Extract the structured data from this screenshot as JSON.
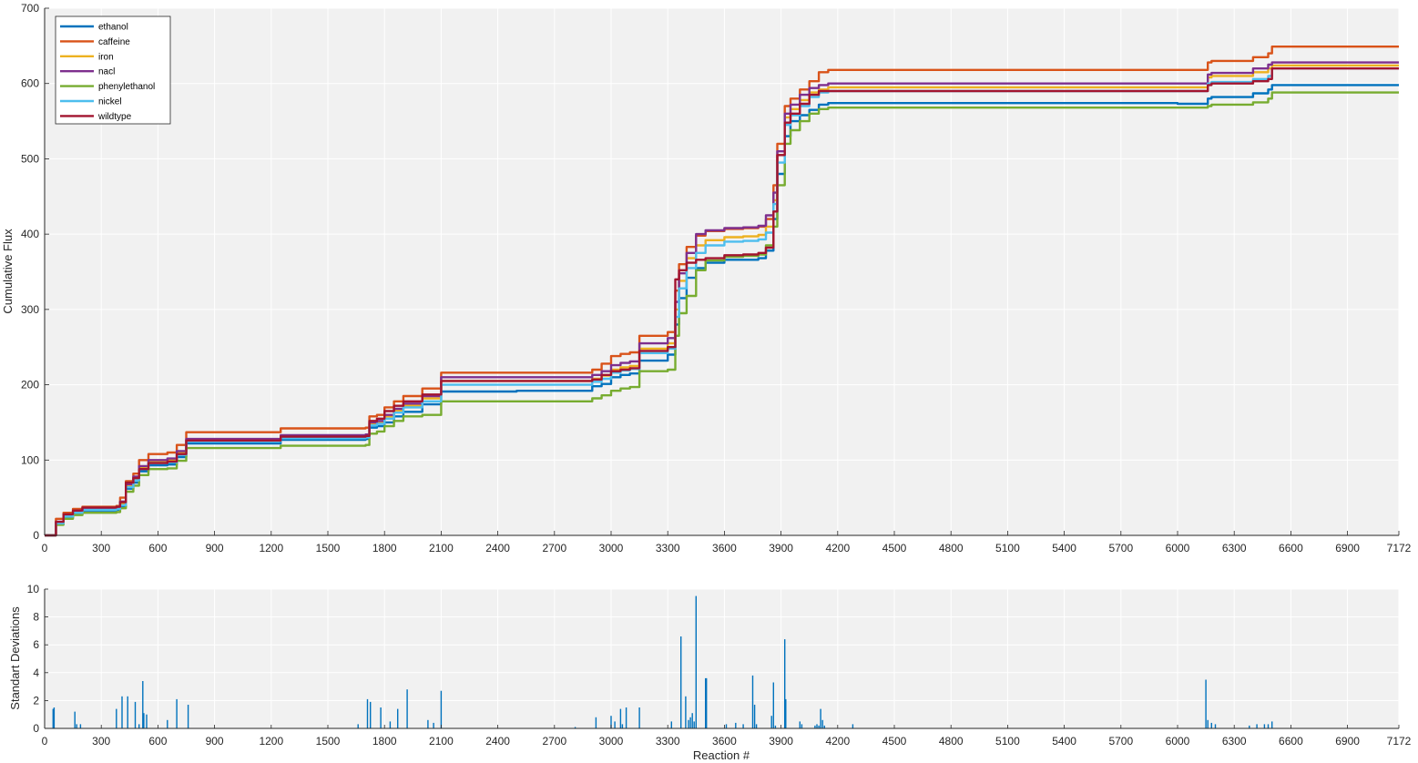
{
  "chart_data": [
    {
      "type": "line",
      "title": "",
      "xlabel": "",
      "ylabel": "Cumulative Flux",
      "xlim": [
        0,
        7172
      ],
      "ylim": [
        0,
        700
      ],
      "xticks": [
        0,
        300,
        600,
        900,
        1200,
        1500,
        1800,
        2100,
        2400,
        2700,
        3000,
        3300,
        3600,
        3900,
        4200,
        4500,
        4800,
        5100,
        5400,
        5700,
        6000,
        6300,
        6600,
        6900,
        7172
      ],
      "yticks": [
        0,
        100,
        200,
        300,
        400,
        500,
        600,
        700
      ],
      "grid": true,
      "legend_position": "top-left",
      "series": [
        {
          "name": "ethanol",
          "color": "#0072BD",
          "x": [
            0,
            40,
            60,
            100,
            150,
            200,
            380,
            400,
            430,
            470,
            500,
            550,
            650,
            700,
            750,
            1000,
            1250,
            1500,
            1700,
            1720,
            1760,
            1800,
            1850,
            1900,
            2000,
            2100,
            2500,
            2800,
            2900,
            2950,
            3000,
            3050,
            3100,
            3150,
            3300,
            3340,
            3360,
            3400,
            3450,
            3500,
            3600,
            3700,
            3780,
            3820,
            3860,
            3880,
            3920,
            3950,
            4000,
            4050,
            4100,
            4150,
            4500,
            5000,
            5500,
            6000,
            6160,
            6180,
            6400,
            6480,
            6500,
            7172
          ],
          "y": [
            0,
            0,
            15,
            24,
            29,
            33,
            34,
            38,
            62,
            70,
            85,
            93,
            94,
            104,
            122,
            122,
            127,
            127,
            128,
            143,
            145,
            150,
            158,
            164,
            174,
            191,
            192,
            192,
            198,
            201,
            210,
            213,
            215,
            232,
            240,
            280,
            315,
            342,
            355,
            362,
            366,
            366,
            368,
            378,
            420,
            480,
            530,
            550,
            558,
            565,
            572,
            574,
            574,
            574,
            574,
            573,
            580,
            582,
            587,
            592,
            598,
            598
          ]
        },
        {
          "name": "caffeine",
          "color": "#D95319",
          "x": [
            0,
            40,
            60,
            100,
            150,
            200,
            380,
            400,
            430,
            470,
            500,
            550,
            650,
            700,
            750,
            1000,
            1250,
            1500,
            1700,
            1720,
            1760,
            1800,
            1850,
            1900,
            2000,
            2100,
            2500,
            2800,
            2900,
            2950,
            3000,
            3050,
            3100,
            3150,
            3300,
            3340,
            3360,
            3400,
            3450,
            3500,
            3600,
            3700,
            3780,
            3820,
            3860,
            3880,
            3920,
            3950,
            4000,
            4050,
            4100,
            4150,
            4500,
            5000,
            5500,
            6000,
            6160,
            6180,
            6400,
            6480,
            6500,
            7172
          ],
          "y": [
            0,
            0,
            22,
            30,
            35,
            38,
            39,
            50,
            72,
            82,
            100,
            108,
            110,
            120,
            137,
            137,
            142,
            142,
            143,
            158,
            160,
            170,
            178,
            185,
            195,
            216,
            216,
            216,
            220,
            228,
            238,
            241,
            243,
            265,
            270,
            325,
            360,
            383,
            398,
            404,
            407,
            408,
            410,
            420,
            465,
            520,
            570,
            580,
            592,
            603,
            615,
            618,
            618,
            618,
            618,
            618,
            628,
            630,
            635,
            640,
            649,
            649
          ]
        },
        {
          "name": "iron",
          "color": "#EDB120",
          "x": [
            0,
            40,
            60,
            100,
            150,
            200,
            380,
            400,
            430,
            470,
            500,
            550,
            650,
            700,
            750,
            1000,
            1250,
            1500,
            1700,
            1720,
            1760,
            1800,
            1850,
            1900,
            2000,
            2100,
            2500,
            2800,
            2900,
            2950,
            3000,
            3050,
            3100,
            3150,
            3300,
            3340,
            3360,
            3400,
            3450,
            3500,
            3600,
            3700,
            3780,
            3820,
            3860,
            3880,
            3920,
            3950,
            4000,
            4050,
            4100,
            4150,
            4500,
            5000,
            5500,
            6000,
            6160,
            6180,
            6400,
            6480,
            6500,
            7172
          ],
          "y": [
            0,
            0,
            17,
            26,
            31,
            35,
            36,
            42,
            66,
            75,
            90,
            98,
            100,
            110,
            127,
            127,
            132,
            132,
            133,
            148,
            150,
            158,
            166,
            172,
            182,
            205,
            205,
            205,
            208,
            212,
            220,
            223,
            225,
            248,
            255,
            300,
            338,
            368,
            385,
            392,
            396,
            397,
            399,
            410,
            445,
            505,
            555,
            566,
            578,
            588,
            592,
            595,
            595,
            595,
            595,
            595,
            608,
            610,
            615,
            620,
            624,
            624
          ]
        },
        {
          "name": "nacl",
          "color": "#7E2F8E",
          "x": [
            0,
            40,
            60,
            100,
            150,
            200,
            380,
            400,
            430,
            470,
            500,
            550,
            650,
            700,
            750,
            1000,
            1250,
            1500,
            1700,
            1720,
            1760,
            1800,
            1850,
            1900,
            2000,
            2100,
            2500,
            2800,
            2900,
            2950,
            3000,
            3050,
            3100,
            3150,
            3300,
            3340,
            3360,
            3400,
            3450,
            3500,
            3600,
            3700,
            3780,
            3820,
            3860,
            3880,
            3920,
            3950,
            4000,
            4050,
            4100,
            4150,
            4500,
            5000,
            5500,
            6000,
            6160,
            6180,
            6400,
            6480,
            6500,
            7172
          ],
          "y": [
            0,
            0,
            18,
            27,
            32,
            36,
            37,
            45,
            68,
            78,
            92,
            100,
            102,
            112,
            128,
            128,
            133,
            133,
            134,
            150,
            152,
            160,
            168,
            175,
            185,
            210,
            210,
            210,
            213,
            218,
            226,
            229,
            231,
            255,
            262,
            310,
            348,
            375,
            400,
            405,
            408,
            409,
            411,
            425,
            455,
            510,
            560,
            572,
            585,
            594,
            598,
            600,
            600,
            600,
            600,
            600,
            612,
            614,
            620,
            625,
            628,
            628
          ]
        },
        {
          "name": "phenylethanol",
          "color": "#77AC30",
          "x": [
            0,
            40,
            60,
            100,
            150,
            200,
            380,
            400,
            430,
            470,
            500,
            550,
            650,
            700,
            750,
            1000,
            1250,
            1500,
            1700,
            1720,
            1760,
            1800,
            1850,
            1900,
            2000,
            2100,
            2500,
            2800,
            2900,
            2950,
            3000,
            3050,
            3100,
            3150,
            3300,
            3340,
            3360,
            3400,
            3450,
            3500,
            3600,
            3700,
            3780,
            3820,
            3860,
            3880,
            3920,
            3950,
            4000,
            4050,
            4100,
            4150,
            4500,
            5000,
            5500,
            6000,
            6160,
            6180,
            6400,
            6480,
            6500,
            7172
          ],
          "y": [
            0,
            0,
            14,
            22,
            27,
            30,
            31,
            36,
            58,
            66,
            80,
            88,
            89,
            99,
            116,
            116,
            119,
            119,
            120,
            135,
            138,
            145,
            152,
            158,
            160,
            178,
            178,
            178,
            182,
            186,
            192,
            195,
            197,
            218,
            220,
            265,
            295,
            318,
            352,
            365,
            370,
            371,
            373,
            385,
            410,
            465,
            520,
            538,
            550,
            560,
            566,
            568,
            568,
            568,
            568,
            568,
            570,
            572,
            575,
            580,
            588,
            588
          ]
        },
        {
          "name": "nickel",
          "color": "#4DBEEE",
          "x": [
            0,
            40,
            60,
            100,
            150,
            200,
            380,
            400,
            430,
            470,
            500,
            550,
            650,
            700,
            750,
            1000,
            1250,
            1500,
            1700,
            1720,
            1760,
            1800,
            1850,
            1900,
            2000,
            2100,
            2500,
            2800,
            2900,
            2950,
            3000,
            3050,
            3100,
            3150,
            3300,
            3340,
            3360,
            3400,
            3450,
            3500,
            3600,
            3700,
            3780,
            3820,
            3860,
            3880,
            3920,
            3950,
            4000,
            4050,
            4100,
            4150,
            4500,
            5000,
            5500,
            6000,
            6160,
            6180,
            6400,
            6480,
            6500,
            7172
          ],
          "y": [
            0,
            0,
            16,
            25,
            30,
            34,
            35,
            40,
            64,
            73,
            88,
            96,
            97,
            107,
            125,
            125,
            129,
            129,
            130,
            146,
            148,
            155,
            163,
            170,
            178,
            200,
            200,
            200,
            204,
            208,
            216,
            219,
            221,
            242,
            248,
            290,
            328,
            355,
            375,
            385,
            390,
            391,
            393,
            402,
            440,
            495,
            545,
            558,
            570,
            582,
            588,
            590,
            590,
            590,
            590,
            590,
            600,
            602,
            606,
            610,
            620,
            620
          ]
        },
        {
          "name": "wildtype",
          "color": "#A2142F",
          "x": [
            0,
            40,
            60,
            100,
            150,
            200,
            380,
            400,
            430,
            470,
            500,
            550,
            650,
            700,
            750,
            1000,
            1250,
            1500,
            1700,
            1720,
            1760,
            1800,
            1850,
            1900,
            2000,
            2100,
            2500,
            2800,
            2900,
            2950,
            3000,
            3050,
            3100,
            3150,
            3300,
            3340,
            3360,
            3400,
            3450,
            3500,
            3600,
            3700,
            3780,
            3820,
            3860,
            3880,
            3920,
            3950,
            4000,
            4050,
            4100,
            4150,
            4500,
            5000,
            5500,
            6000,
            6160,
            6180,
            6400,
            6480,
            6500,
            7172
          ],
          "y": [
            0,
            0,
            18,
            28,
            33,
            37,
            38,
            44,
            70,
            76,
            88,
            96,
            98,
            108,
            126,
            126,
            131,
            131,
            132,
            152,
            155,
            165,
            172,
            178,
            187,
            205,
            205,
            205,
            207,
            213,
            218,
            220,
            222,
            245,
            250,
            340,
            352,
            362,
            366,
            368,
            372,
            373,
            375,
            382,
            430,
            505,
            548,
            560,
            573,
            585,
            590,
            590,
            590,
            590,
            590,
            590,
            598,
            600,
            603,
            606,
            620,
            620
          ]
        }
      ]
    },
    {
      "type": "bar",
      "title": "",
      "xlabel": "Reaction #",
      "ylabel": "Standart Deviations",
      "xlim": [
        0,
        7172
      ],
      "ylim": [
        0,
        10
      ],
      "xticks": [
        0,
        300,
        600,
        900,
        1200,
        1500,
        1800,
        2100,
        2400,
        2700,
        3000,
        3300,
        3600,
        3900,
        4200,
        4500,
        4800,
        5100,
        5400,
        5700,
        6000,
        6300,
        6600,
        6900,
        7172
      ],
      "yticks": [
        0,
        2,
        4,
        6,
        8,
        10
      ],
      "grid": true,
      "color": "#0072BD",
      "x": [
        45,
        50,
        160,
        170,
        190,
        380,
        410,
        440,
        480,
        500,
        520,
        525,
        540,
        650,
        700,
        760,
        1660,
        1710,
        1725,
        1780,
        1830,
        1870,
        1920,
        2030,
        2060,
        2100,
        2810,
        2920,
        3000,
        3020,
        3050,
        3060,
        3080,
        3150,
        3320,
        3370,
        3395,
        3410,
        3420,
        3430,
        3440,
        3450,
        3500,
        3505,
        3610,
        3660,
        3700,
        3750,
        3760,
        3770,
        3850,
        3860,
        3870,
        3920,
        3925,
        4000,
        4010,
        4080,
        4090,
        4100,
        4110,
        4120,
        4130,
        4280,
        6150,
        6160,
        6180,
        6200,
        6380,
        6420,
        6460,
        6480,
        6500
      ],
      "values": [
        1.4,
        1.5,
        1.2,
        0.3,
        0.3,
        1.4,
        2.3,
        2.3,
        1.9,
        0.3,
        3.4,
        1.1,
        1.0,
        0.6,
        2.1,
        1.7,
        0.3,
        2.1,
        1.9,
        1.5,
        0.5,
        1.4,
        2.8,
        0.6,
        0.4,
        2.7,
        0.1,
        0.8,
        0.9,
        0.5,
        1.4,
        0.3,
        1.5,
        1.5,
        0.5,
        6.6,
        2.3,
        0.6,
        0.8,
        1.1,
        0.5,
        9.5,
        3.6,
        3.6,
        0.3,
        0.4,
        0.3,
        3.8,
        1.7,
        0.3,
        0.9,
        3.3,
        0.2,
        6.4,
        2.1,
        0.5,
        0.3,
        0.2,
        0.3,
        0.2,
        1.4,
        0.6,
        0.2,
        0.3,
        3.5,
        0.6,
        0.4,
        0.3,
        0.2,
        0.3,
        0.3,
        0.3,
        0.5
      ]
    }
  ]
}
